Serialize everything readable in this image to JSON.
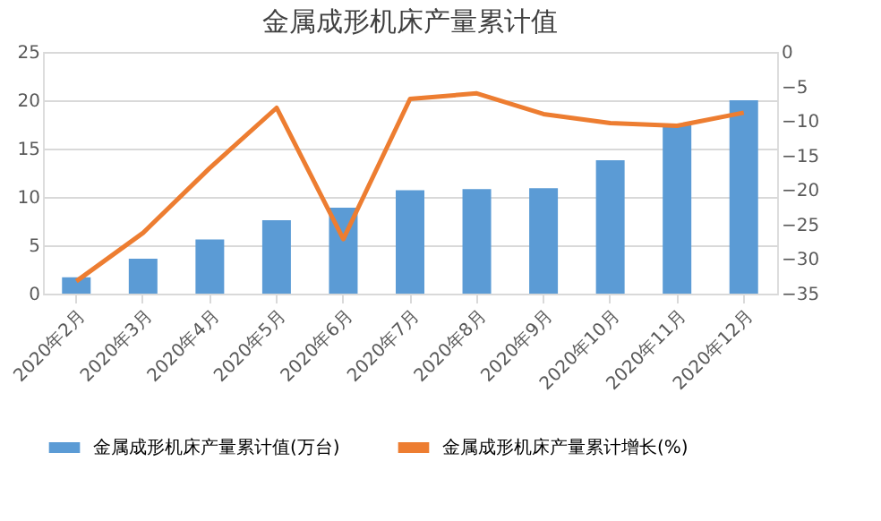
{
  "chart_data": {
    "type": "bar",
    "title": "金属成形机床产量累计值",
    "categories": [
      "2020年2月",
      "2020年3月",
      "2020年4月",
      "2020年5月",
      "2020年6月",
      "2020年7月",
      "2020年8月",
      "2020年9月",
      "2020年10月",
      "2020年11月",
      "2020年12月"
    ],
    "series": [
      {
        "name": "金属成形机床产量累计值(万台)",
        "color": "#5b9bd5",
        "values": [
          1.7,
          3.6,
          5.6,
          7.6,
          8.9,
          10.7,
          10.8,
          10.9,
          13.8,
          17.4,
          20.0
        ]
      },
      {
        "name": "金属成形机床产量累计增长(%)",
        "type": "line",
        "axis": "y2",
        "color": "#ed7d31",
        "values": [
          -33.2,
          -26.2,
          -16.8,
          -8.1,
          -27.1,
          -6.8,
          -6.0,
          -9.0,
          -10.3,
          -10.7,
          -8.8
        ]
      }
    ],
    "ylim": [
      0,
      25
    ],
    "yticks": [
      0,
      5,
      10,
      15,
      20,
      25
    ],
    "y2lim": [
      -35,
      0
    ],
    "y2ticks": [
      -35,
      -30,
      -25,
      -20,
      -15,
      -10,
      -5,
      0
    ],
    "grid": "y",
    "legend": "bottom",
    "marker": "none"
  }
}
